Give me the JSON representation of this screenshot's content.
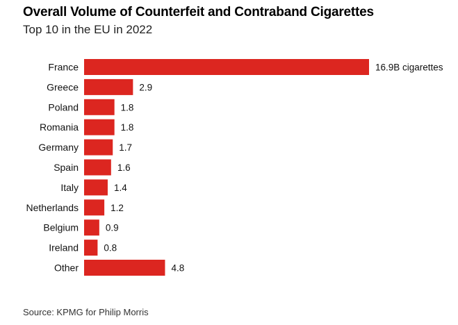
{
  "chart_data": {
    "type": "bar",
    "orientation": "horizontal",
    "title": "Overall Volume of Counterfeit and Contraband Cigarettes",
    "subtitle": "Top 10 in the EU in 2022",
    "categories": [
      "France",
      "Greece",
      "Poland",
      "Romania",
      "Germany",
      "Spain",
      "Italy",
      "Netherlands",
      "Belgium",
      "Ireland",
      "Other"
    ],
    "values": [
      16.9,
      2.9,
      1.8,
      1.8,
      1.7,
      1.6,
      1.4,
      1.2,
      0.9,
      0.8,
      4.8
    ],
    "value_labels": [
      "16.9B cigarettes",
      "2.9",
      "1.8",
      "1.8",
      "1.7",
      "1.6",
      "1.4",
      "1.2",
      "0.9",
      "0.8",
      "4.8"
    ],
    "unit": "billion cigarettes",
    "xlim": [
      0,
      16.9
    ],
    "grid": false,
    "bar_color": "#dc2620",
    "source": "Source: KPMG for Philip Morris"
  }
}
